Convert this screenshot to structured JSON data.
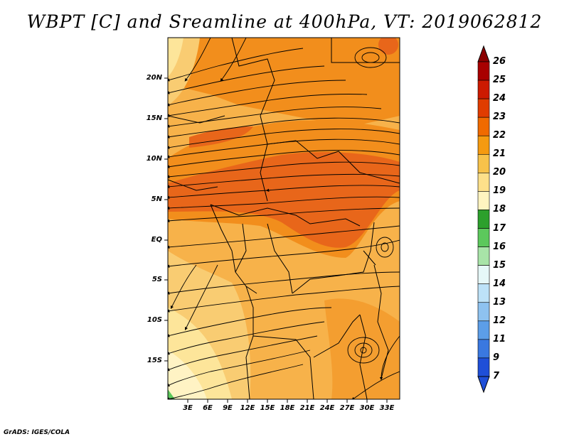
{
  "title": "WBPT [C] and Sreamline at 400hPa, VT: 2019062812",
  "credit": "GrADS: IGES/COLA",
  "map": {
    "lat_labels": [
      "20N",
      "15N",
      "10N",
      "5N",
      "EQ",
      "5S",
      "10S",
      "15S"
    ],
    "lon_labels": [
      "3E",
      "6E",
      "9E",
      "12E",
      "15E",
      "18E",
      "21E",
      "24E",
      "27E",
      "30E",
      "33E"
    ]
  },
  "colorbar": {
    "labels": [
      "26",
      "25",
      "24",
      "23",
      "22",
      "21",
      "20",
      "19",
      "18",
      "17",
      "16",
      "15",
      "14",
      "13",
      "12",
      "11",
      "9",
      "7"
    ],
    "colors": [
      "#8b0000",
      "#a80000",
      "#cc1a00",
      "#e03c00",
      "#f06a00",
      "#f59a10",
      "#f7c24a",
      "#fde08a",
      "#fff4c0",
      "#2ca02c",
      "#5cc85c",
      "#a8e4a8",
      "#e6f8f8",
      "#bde2f8",
      "#8ec2f0",
      "#5c9ee8",
      "#3a78e0",
      "#1f4fd8"
    ]
  },
  "palette": {
    "wbpt_21": "#f7b24a",
    "wbpt_22": "#f28e1c",
    "wbpt_23": "#e8661a",
    "wbpt_20": "#f9cc72",
    "wbpt_19": "#fde59a",
    "wbpt_18": "#fff3c4"
  }
}
